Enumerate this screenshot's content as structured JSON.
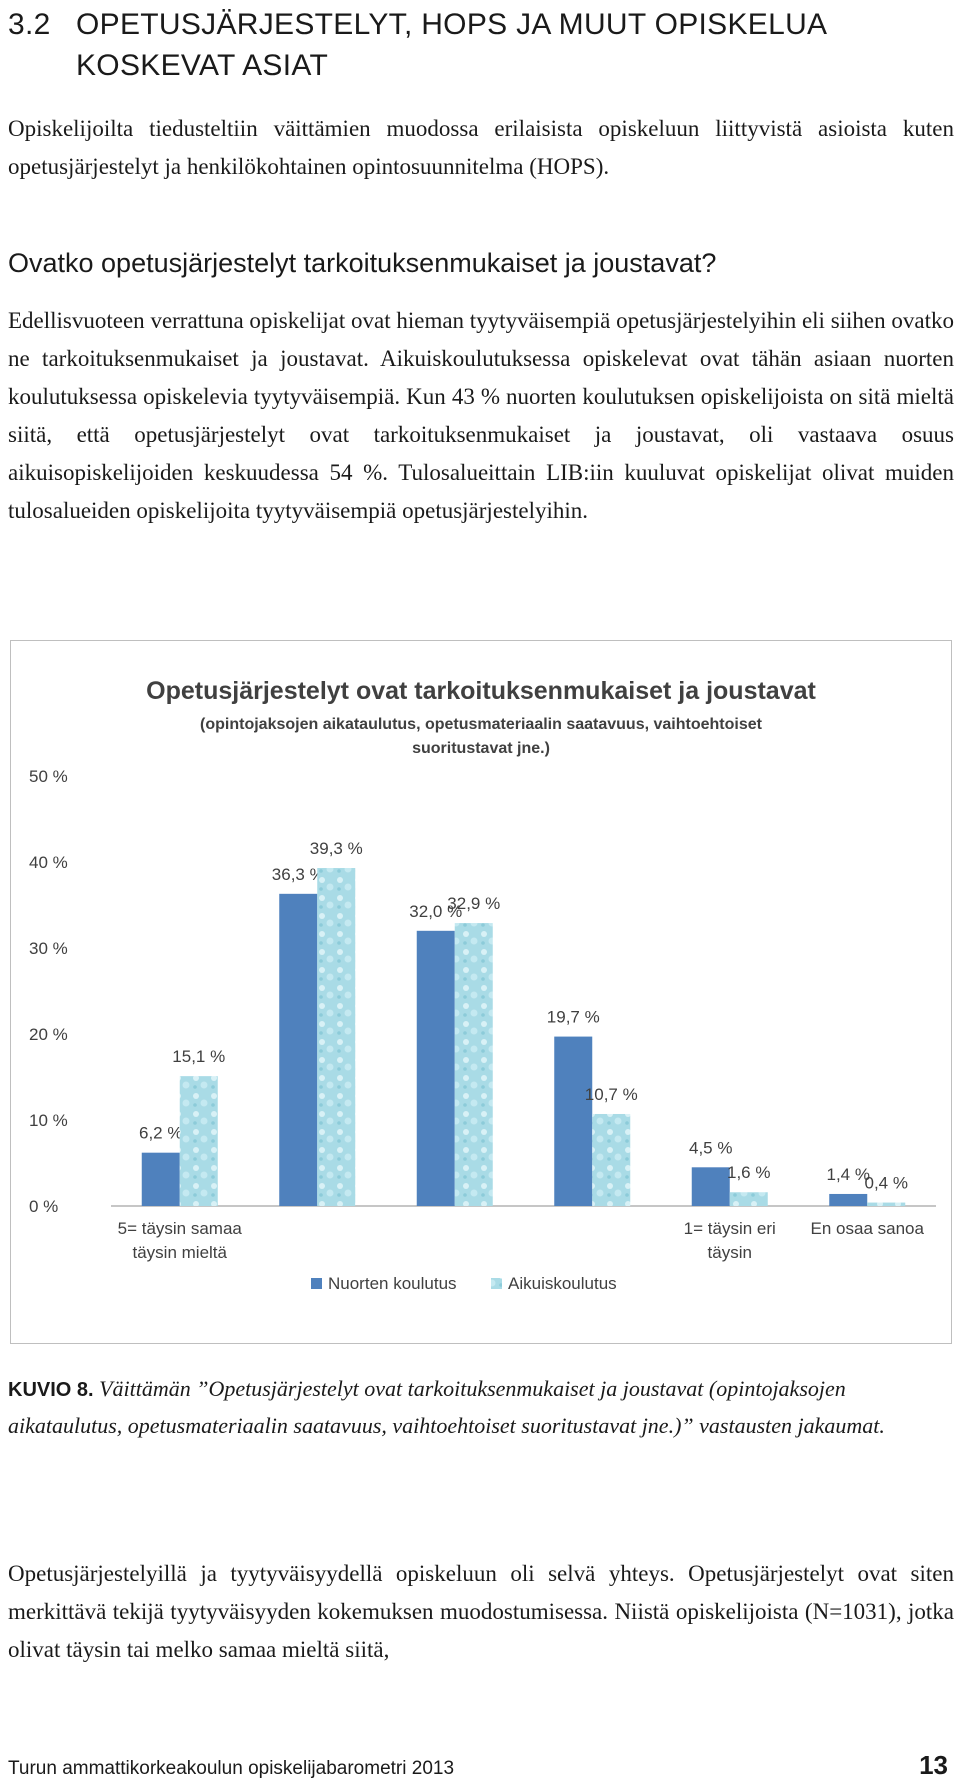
{
  "section": {
    "number": "3.2",
    "title_line1": "OPETUSJÄRJESTELYT, HOPS JA MUUT OPISKELUA",
    "title_line2": "KOSKEVAT ASIAT"
  },
  "intro": "Opiskelijoilta tiedusteltiin väittämien muodossa erilaisista opiskeluun liittyvistä asioista kuten opetusjärjestelyt ja henkilökohtainen opintosuunnitelma (HOPS).",
  "subheading": "Ovatko opetusjärjestelyt tarkoituksenmukaiset ja joustavat?",
  "body1": "Edellisvuoteen verrattuna opiskelijat ovat hieman tyytyväisempiä opetusjärjestelyihin eli siihen ovatko ne tarkoituksenmukaiset ja joustavat. Aikuiskoulutuksessa opiskelevat ovat tähän asiaan nuorten koulutuksessa opiskelevia tyytyväisempiä. Kun 43 % nuorten koulutuksen opiskelijoista on sitä mieltä siitä, että opetusjärjestelyt ovat tarkoituksenmukaiset ja joustavat, oli vastaava osuus aikuisopiskelijoiden keskuudessa 54 %. Tulosalueittain LIB:iin kuuluvat opiskelijat olivat muiden tulosalueiden opiskelijoita tyytyväisempiä opetusjärjestelyihin.",
  "chart_data": {
    "type": "bar",
    "title": "Opetusjärjestelyt ovat tarkoituksenmukaiset ja joustavat",
    "subtitle_line1": "(opintojaksojen aikataulutus, opetusmateriaalin saatavuus, vaihtoehtoiset",
    "subtitle_line2": "suoritustavat jne.)",
    "category_labels": [
      [
        "5= täysin samaa",
        "täysin mieltä"
      ],
      [],
      [],
      [],
      [
        "1= täysin eri",
        "täysin"
      ],
      [
        "En osaa sanoa"
      ]
    ],
    "y_ticks": [
      "0 %",
      "10 %",
      "20 %",
      "30 %",
      "40 %",
      "50 %"
    ],
    "ylim": [
      0,
      50
    ],
    "grid": false,
    "legend_position": "bottom",
    "series": [
      {
        "name": "Nuorten koulutus",
        "color": "#4f81bd",
        "values": [
          6.2,
          36.3,
          32.0,
          19.7,
          4.5,
          1.4
        ],
        "labels": [
          "6,2 %",
          "36,3 %",
          "32,0 %",
          "19,7 %",
          "4,5 %",
          "1,4 %"
        ]
      },
      {
        "name": "Aikuiskoulutus",
        "color": "#a9dbe6",
        "values": [
          15.1,
          39.3,
          32.9,
          10.7,
          1.6,
          0.4
        ],
        "labels": [
          "15,1 %",
          "39,3 %",
          "32,9 %",
          "10,7 %",
          "1,6 %",
          "0,4 %"
        ]
      }
    ]
  },
  "caption": {
    "label": "KUVIO 8.",
    "text": "Väittämän ”Opetusjärjestelyt ovat tarkoituksenmukaiset ja joustavat (opintojaksojen aikataulutus, opetusmateriaalin saatavuus, vaihtoehtoiset suoritustavat jne.)” vastausten jakaumat."
  },
  "body2": "Opetusjärjestelyillä ja tyytyväisyydellä opiskeluun oli selvä yhteys. Opetusjärjestelyt ovat siten merkittävä tekijä tyytyväisyyden kokemuksen muodostumisessa. Niistä opiskelijoista (N=1031), jotka olivat täysin tai melko samaa mieltä siitä,",
  "footer": {
    "title": "Turun ammattikorkeakoulun opiskelijabarometri 2013",
    "page": "13"
  }
}
